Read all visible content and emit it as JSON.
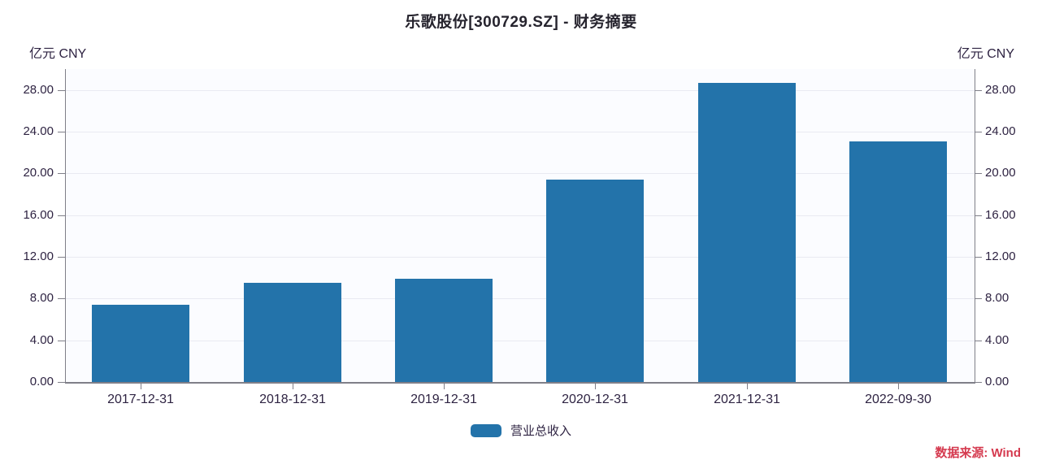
{
  "header": {
    "title": "乐歌股份[300729.SZ] - 财务摘要"
  },
  "axis_units": {
    "left": "亿元 CNY",
    "right": "亿元 CNY"
  },
  "legend": {
    "items": [
      {
        "label": "营业总收入",
        "color": "#2373aa"
      }
    ]
  },
  "source": "数据来源: Wind",
  "colors": {
    "bar": "#2373aa",
    "axis_line": "#7f7f88",
    "gridline": "#e9eaf2",
    "tick_text": "#2e2342",
    "title_text": "#26242e",
    "source_text": "#d53a4f",
    "plot_background": "#fbfcff"
  },
  "chart_data": {
    "type": "bar",
    "title": "乐歌股份[300729.SZ] - 财务摘要",
    "categories": [
      "2017-12-31",
      "2018-12-31",
      "2019-12-31",
      "2020-12-31",
      "2021-12-31",
      "2022-09-30"
    ],
    "series": [
      {
        "name": "营业总收入",
        "color": "#2373aa",
        "values": [
          7.44,
          9.49,
          9.9,
          19.42,
          28.71,
          23.05
        ]
      }
    ],
    "xlabel": "",
    "ylabel": "亿元 CNY",
    "ylabel_right": "亿元 CNY",
    "ylim": [
      0,
      30
    ],
    "yticks": [
      0,
      4,
      8,
      12,
      16,
      20,
      24,
      28
    ],
    "ytick_format": "0.00",
    "grid": true,
    "dual_axis_labels": true,
    "legend_position": "bottom",
    "source": "数据来源: Wind"
  }
}
